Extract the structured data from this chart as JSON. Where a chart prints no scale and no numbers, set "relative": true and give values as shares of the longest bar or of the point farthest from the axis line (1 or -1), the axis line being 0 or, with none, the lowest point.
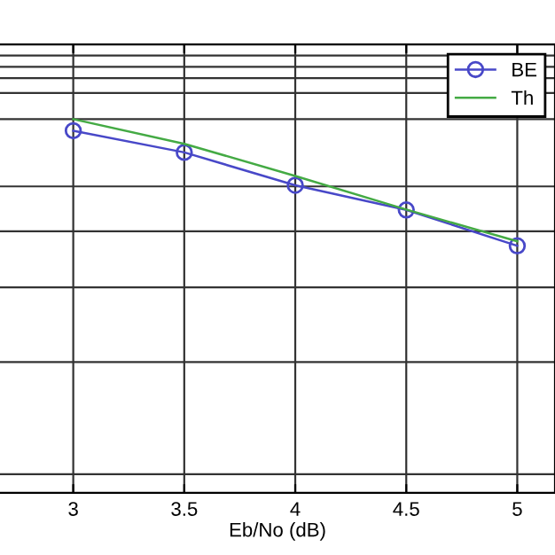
{
  "chart_data": {
    "type": "line",
    "xlabel": "Eb/No (dB)",
    "relative": true,
    "x": [
      3,
      3.5,
      4,
      4.5,
      5
    ],
    "xlim": [
      2.67,
      5.17
    ],
    "xticks": [
      3,
      3.5,
      4,
      4.5,
      5
    ],
    "series": [
      {
        "name": "BE",
        "color": "#4848c8",
        "marker": "circle",
        "values": [
          0.969,
          0.911,
          0.823,
          0.757,
          0.661
        ]
      },
      {
        "name": "Th",
        "color": "#44aa44",
        "marker": "none",
        "values": [
          1,
          0.934,
          0.848,
          0.758,
          0.673
        ]
      }
    ],
    "grid": true,
    "legend": "top right",
    "line_style": "solid"
  }
}
